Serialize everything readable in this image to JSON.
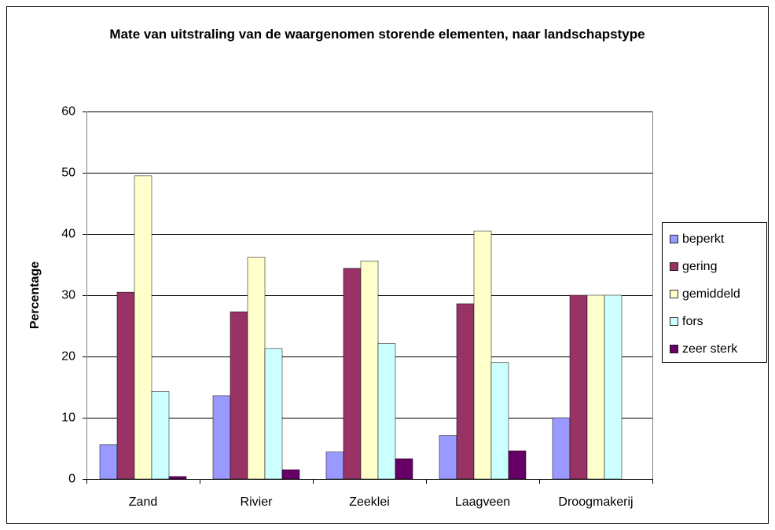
{
  "chart_data": {
    "type": "bar",
    "title": "Mate van uitstraling van de waargenomen storende elementen, naar landschapstype",
    "ylabel": "Percentage",
    "categories": [
      "Zand",
      "Rivier",
      "Zeeklei",
      "Laagveen",
      "Droogmakerij"
    ],
    "series": [
      {
        "name": "beperkt",
        "color": "#9999ff",
        "values": [
          5.6,
          13.6,
          4.4,
          7.1,
          10
        ]
      },
      {
        "name": "gering",
        "color": "#993366",
        "values": [
          30.5,
          27.3,
          34.4,
          28.6,
          30
        ]
      },
      {
        "name": "gemiddeld",
        "color": "#ffffcc",
        "values": [
          49.5,
          36.2,
          35.6,
          40.5,
          30
        ]
      },
      {
        "name": "fors",
        "color": "#ccffff",
        "values": [
          14.3,
          21.3,
          22.1,
          19.0,
          30
        ]
      },
      {
        "name": "zeer sterk",
        "color": "#660066",
        "values": [
          0.4,
          1.5,
          3.3,
          4.6,
          0
        ]
      }
    ],
    "ylim": [
      0,
      60
    ],
    "yticks": [
      0,
      10,
      20,
      30,
      40,
      50,
      60
    ],
    "grid": true,
    "legend": "right"
  }
}
